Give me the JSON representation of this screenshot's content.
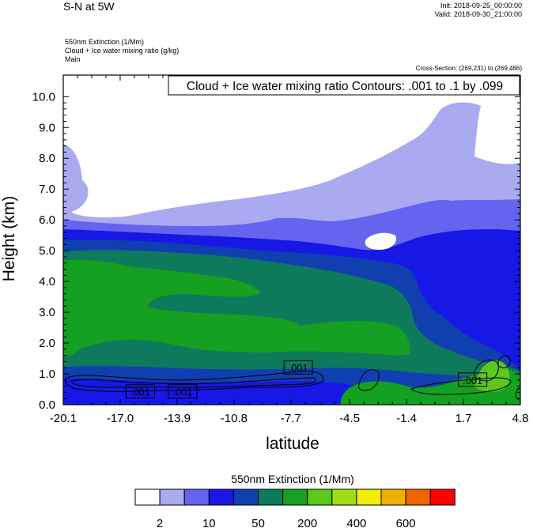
{
  "header": {
    "title": "S-N at 5W",
    "init": "Init: 2018-09-25_00:00:00",
    "valid": "Valid: 2018-09-30_21:00:00",
    "field1": "550nm Extinction   (1/Mm)",
    "field2": "Cloud + Ice water mixing ratio   (g/kg)",
    "field3": "Main",
    "cross_section": "Cross-Section: (269,231) to (269,486)"
  },
  "chart_data": {
    "type": "heatmap",
    "title": "Cloud + Ice water mixing ratio Contours: .001 to .1 by .099",
    "xlabel": "latitude",
    "ylabel": "Height (km)",
    "x_ticks": [
      "-20.1",
      "-17.0",
      "-13.9",
      "-10.8",
      "-7.7",
      "-4.5",
      "-1.4",
      "1.7",
      "4.8"
    ],
    "y_ticks": [
      "0.0",
      "1.0",
      "2.0",
      "3.0",
      "4.0",
      "5.0",
      "6.0",
      "7.0",
      "8.0",
      "9.0",
      "10.0"
    ],
    "xlim": [
      -20.1,
      4.8
    ],
    "ylim": [
      0.0,
      10.7
    ],
    "colorbar": {
      "title": "550nm Extinction  (1/Mm)",
      "labels": [
        "2",
        "10",
        "50",
        "200",
        "400",
        "600"
      ],
      "colors": [
        "#ffffff",
        "#aaaaf0",
        "#6464f0",
        "#1818e6",
        "#1040b0",
        "#0e7a5c",
        "#14a020",
        "#5cc81c",
        "#a0dc14",
        "#f0f000",
        "#f0b000",
        "#f06400",
        "#ff0000"
      ]
    },
    "contour_labels": [
      ".001",
      ".001",
      ".001",
      ".001"
    ]
  }
}
